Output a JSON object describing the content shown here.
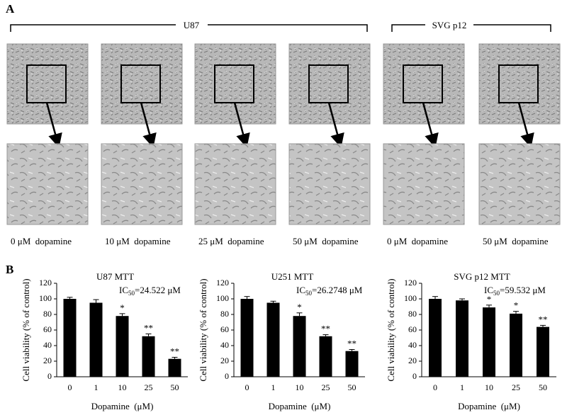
{
  "panel_a": {
    "label": "A",
    "groups": [
      "U87",
      "SVG p12"
    ],
    "conditions": [
      "0 μM  dopamine",
      "10 μM  dopamine",
      "25 μM  dopamine",
      "50 μM  dopamine",
      "0 μM  dopamine",
      "50 μM  dopamine"
    ]
  },
  "panel_b": {
    "label": "B"
  },
  "chart_data": [
    {
      "type": "bar",
      "title": "U87 MTT",
      "annotation": {
        "prefix": "IC",
        "sub": "50",
        "suffix": "=24.522 μM"
      },
      "categories": [
        "0",
        "1",
        "10",
        "25",
        "50"
      ],
      "values": [
        100,
        95,
        78,
        52,
        23
      ],
      "errors": [
        2,
        4,
        3,
        3,
        2
      ],
      "significance": [
        null,
        null,
        "*",
        "**",
        "**"
      ],
      "color": "#000000",
      "x_label": "Dopamine  (μM)",
      "y_label": "Cell viability (% of control)",
      "ylim": [
        0,
        120
      ],
      "yticks": [
        0,
        20,
        40,
        60,
        80,
        100,
        120
      ]
    },
    {
      "type": "bar",
      "title": "U251 MTT",
      "annotation": {
        "prefix": "IC",
        "sub": "50",
        "suffix": "=26.2748 μM"
      },
      "categories": [
        "0",
        "1",
        "10",
        "25",
        "50"
      ],
      "values": [
        100,
        95,
        78,
        52,
        33
      ],
      "errors": [
        3,
        2,
        4,
        2,
        2
      ],
      "significance": [
        null,
        null,
        "*",
        "**",
        "**"
      ],
      "color": "#000000",
      "x_label": "Dopamine  (μM)",
      "y_label": "Cell viability (% of control)",
      "ylim": [
        0,
        120
      ],
      "yticks": [
        0,
        20,
        40,
        60,
        80,
        100,
        120
      ]
    },
    {
      "type": "bar",
      "title": "SVG p12 MTT",
      "annotation": {
        "prefix": "IC",
        "sub": "50",
        "suffix": "=59.532 μM"
      },
      "categories": [
        "0",
        "1",
        "10",
        "25",
        "50"
      ],
      "values": [
        100,
        98,
        89,
        81,
        64
      ],
      "errors": [
        3,
        2,
        3,
        3,
        2
      ],
      "significance": [
        null,
        null,
        "*",
        "*",
        "**"
      ],
      "color": "#000000",
      "x_label": "Dopamine  (μM)",
      "y_label": "Cell viability (% of control)",
      "ylim": [
        0,
        120
      ],
      "yticks": [
        0,
        20,
        40,
        60,
        80,
        100,
        120
      ]
    }
  ]
}
